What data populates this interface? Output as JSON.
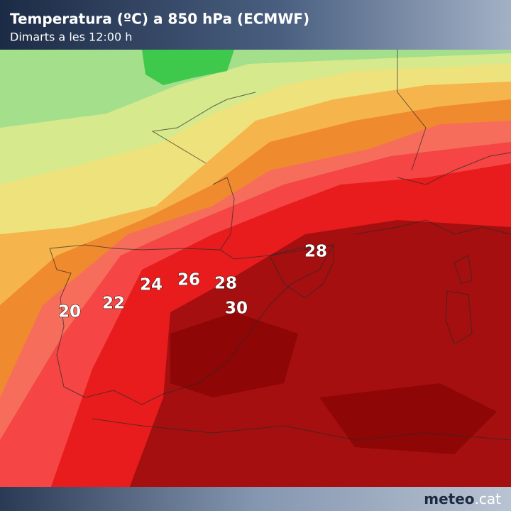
{
  "header": {
    "title": "Temperatura (ºC) a 850 hPa (ECMWF)",
    "subtitle": "Dimarts a les 12:00 h"
  },
  "map": {
    "labels": [
      20,
      22,
      24,
      26,
      28,
      30,
      28
    ]
  },
  "footer": {
    "brand": "meteo",
    "suffix": ".cat"
  }
}
